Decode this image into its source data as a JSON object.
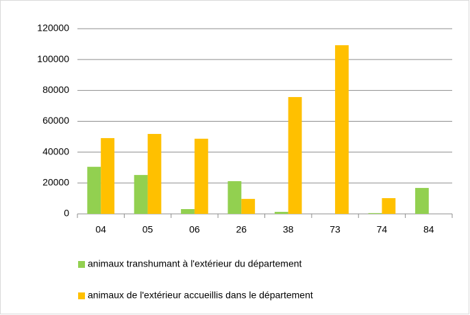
{
  "chart_data": {
    "type": "bar",
    "categories": [
      "04",
      "05",
      "06",
      "26",
      "38",
      "73",
      "74",
      "84"
    ],
    "series": [
      {
        "name": "animaux transhumant à l'extérieur du département",
        "color": "#92d050",
        "values": [
          30500,
          25200,
          3100,
          21200,
          1300,
          0,
          500,
          16800
        ]
      },
      {
        "name": "animaux de l'extérieur accueillis dans le département",
        "color": "#ffc000",
        "values": [
          49100,
          51800,
          48700,
          9700,
          75700,
          109300,
          10200,
          0
        ]
      }
    ],
    "ylim": [
      0,
      120000
    ],
    "yticks": [
      0,
      20000,
      40000,
      60000,
      80000,
      100000,
      120000
    ],
    "grid": true,
    "legend": "bottom"
  }
}
